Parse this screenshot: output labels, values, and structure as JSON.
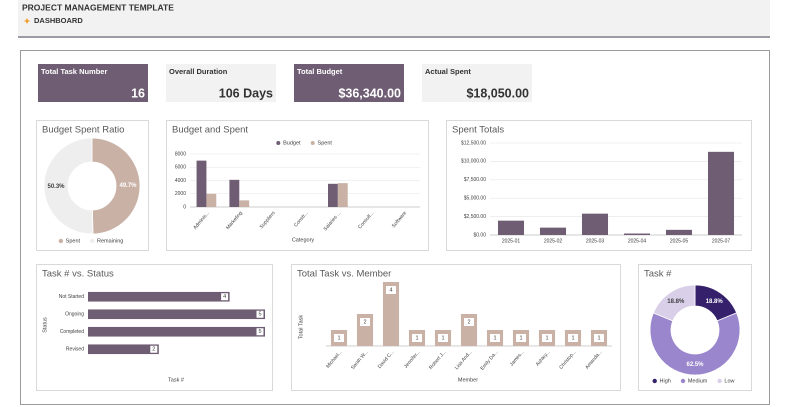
{
  "header": {
    "title": "PROJECT MANAGEMENT TEMPLATE",
    "subtitle": "DASHBOARD"
  },
  "kpis": [
    {
      "label": "Total Task Number",
      "value": 16
    },
    {
      "label": "Overall Duration",
      "value": "106 Days"
    },
    {
      "label": "Total Budget",
      "value": "$36,340.00"
    },
    {
      "label": "Actual Spent",
      "value": "$18,050.00"
    }
  ],
  "chart_data": [
    {
      "type": "donut",
      "title": "Budget Spent Ratio",
      "categories": [
        "Spent",
        "Remaining"
      ],
      "values": [
        49.7,
        50.3
      ],
      "value_labels": [
        "49.7%",
        "50.3%"
      ],
      "colors": [
        "#c9b1a6",
        "#eeeeee"
      ],
      "legend": "bottom"
    },
    {
      "type": "bar",
      "title": "Budget and Spent",
      "x_label": "Category",
      "categories": [
        "Adminis...",
        "Marketing",
        "Suppliers",
        "Constr...",
        "Salaries ...",
        "Consult...",
        "Software"
      ],
      "series": [
        {
          "name": "Budget",
          "color": "#6e5d73",
          "values": [
            7000,
            4100,
            0,
            0,
            3500,
            0,
            0
          ]
        },
        {
          "name": "Spent",
          "color": "#c9b1a6",
          "values": [
            2000,
            1000,
            0,
            0,
            3600,
            0,
            0
          ]
        }
      ],
      "ylim": [
        0,
        8000
      ],
      "yticks": [
        0,
        2000,
        4000,
        6000,
        8000
      ],
      "grid": true,
      "legend": "top",
      "rotate_labels": true
    },
    {
      "type": "bar",
      "title": "Spent Totals",
      "categories": [
        "2025-01",
        "2025-02",
        "2025-03",
        "2025-04",
        "2025-05",
        "2025-07"
      ],
      "values": [
        1950,
        1000,
        2900,
        200,
        700,
        11300
      ],
      "color": "#6e5d73",
      "ylim": [
        0,
        12500
      ],
      "yticks": [
        {
          "value": 0,
          "label": "$0.00"
        },
        {
          "value": 2500,
          "label": "$2,500.00"
        },
        {
          "value": 5000,
          "label": "$5,000.00"
        },
        {
          "value": 7500,
          "label": "$7,500.00"
        },
        {
          "value": 10000,
          "label": "$10,000.00"
        },
        {
          "value": 12500,
          "label": "$12,500.00"
        }
      ],
      "grid": true
    },
    {
      "type": "hbar",
      "title": "Task # vs. Status",
      "x_label": "Task #",
      "y_label": "Status",
      "categories": [
        "Not Started",
        "Ongoing",
        "Completed",
        "Revised"
      ],
      "values": [
        4,
        5,
        5,
        2
      ],
      "color": "#6e5d73",
      "xlim": [
        0,
        5
      ],
      "data_labels": true
    },
    {
      "type": "bar",
      "title": "Total Task vs. Member",
      "x_label": "Member",
      "y_label": "Total Task",
      "categories": [
        "Michael...",
        "Sarah W...",
        "David C...",
        "Jennifer...",
        "Robert J...",
        "Lisa And...",
        "Emily Da...",
        "James...",
        "Ashley...",
        "Christop...",
        "Amanda..."
      ],
      "values": [
        1,
        2,
        4,
        1,
        1,
        2,
        1,
        1,
        1,
        1,
        1
      ],
      "color": "#c9b1a6",
      "ylim": [
        0,
        4
      ],
      "data_labels": true,
      "rotate_labels": true
    },
    {
      "type": "donut",
      "title": "Task #",
      "categories": [
        "High",
        "Medium",
        "Low"
      ],
      "values": [
        18.8,
        62.5,
        18.8
      ],
      "value_labels": [
        "18.8%",
        "62.5%",
        "18.8%"
      ],
      "colors": [
        "#35216b",
        "#9a86cc",
        "#d9cfe8"
      ],
      "legend": "bottom"
    }
  ]
}
